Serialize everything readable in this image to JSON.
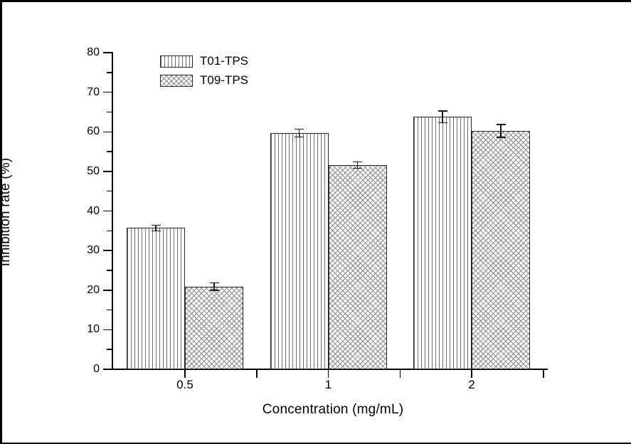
{
  "frame": {
    "background_color": "#ffffff",
    "border_color": "#000000"
  },
  "chart_data": {
    "type": "bar",
    "title": "",
    "xlabel": "Concentration (mg/mL)",
    "ylabel": "Inhibition rate (%)",
    "categories": [
      "0.5",
      "1",
      "2"
    ],
    "series": [
      {
        "name": "T01-TPS",
        "pattern": "vertical-lines",
        "values": [
          35.7,
          59.7,
          63.8
        ],
        "errors": [
          0.7,
          1.0,
          1.5
        ]
      },
      {
        "name": "T09-TPS",
        "pattern": "crosshatch",
        "values": [
          20.9,
          51.6,
          60.2
        ],
        "errors": [
          0.9,
          0.8,
          1.6
        ]
      }
    ],
    "ylim": [
      0,
      80
    ],
    "y_major_step": 10,
    "y_minor_step": 5,
    "grid": false,
    "legend_position": "top-left-inside",
    "axis_color": "#000000",
    "bar_border_color": "#2a2a2a",
    "hatch_color": "#707070",
    "error_bar_color": "#1a1a1a"
  }
}
